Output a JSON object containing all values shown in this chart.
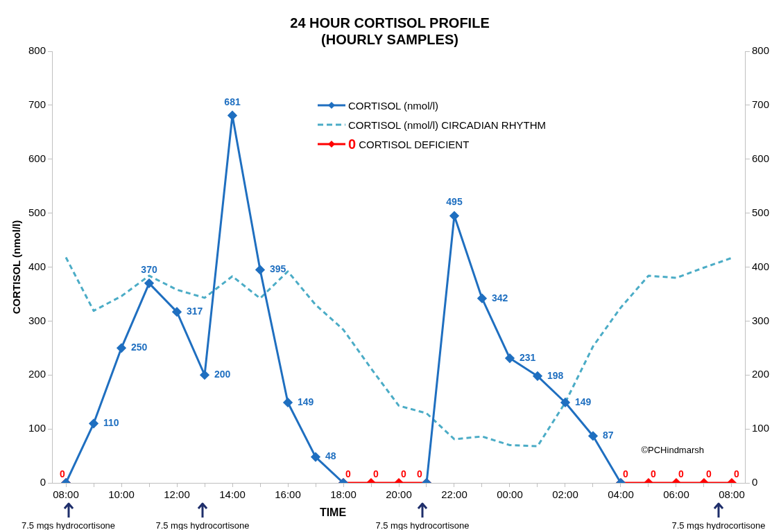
{
  "chart_data": {
    "type": "line",
    "title": "24 HOUR CORTISOL PROFILE",
    "subtitle": "(HOURLY SAMPLES)",
    "xlabel": "TIME",
    "ylabel": "CORTISOL (nmol/l)",
    "categories": [
      "08:00",
      null,
      "10:00",
      null,
      "12:00",
      null,
      "14:00",
      null,
      "16:00",
      null,
      "18:00",
      null,
      "20:00",
      null,
      "22:00",
      null,
      "00:00",
      null,
      "02:00",
      null,
      "04:00",
      null,
      "06:00",
      null,
      "08:00"
    ],
    "ylim": [
      0,
      800
    ],
    "yticks": [
      0,
      100,
      200,
      300,
      400,
      500,
      600,
      700,
      800
    ],
    "y2lim": [
      0,
      800
    ],
    "y2ticks": [
      0,
      100,
      200,
      300,
      400,
      500,
      600,
      700,
      800
    ],
    "grid": false,
    "legend": "top",
    "series": [
      {
        "name": "CORTISOL (nmol/l)",
        "color": "#1f6fc0",
        "marker": "diamond",
        "line_style": "solid",
        "values": [
          0,
          110,
          250,
          370,
          317,
          200,
          681,
          395,
          149,
          48,
          0,
          null,
          null,
          0,
          495,
          342,
          231,
          198,
          149,
          87,
          0,
          null,
          null,
          null,
          null
        ],
        "value_labels": [
          null,
          "110",
          "250",
          "370",
          "317",
          "200",
          "681",
          "395",
          "149",
          "48",
          null,
          null,
          null,
          null,
          "495",
          "342",
          "231",
          "198",
          "149",
          "87",
          null,
          null,
          null,
          null,
          null
        ]
      },
      {
        "name": "CORTISOL (nmol/l) CIRCADIAN RHYTHM",
        "color": "#4bacc6",
        "marker": "none",
        "line_style": "dashed",
        "values": [
          418,
          319,
          346,
          384,
          358,
          343,
          383,
          342,
          392,
          330,
          284,
          212,
          143,
          129,
          81,
          86,
          70,
          68,
          149,
          253,
          325,
          384,
          380,
          399,
          417
        ]
      },
      {
        "name": "CORTISOL DEFICIENT",
        "color": "#ff0000",
        "marker": "diamond",
        "line_style": "solid",
        "values": [
          0,
          null,
          null,
          null,
          null,
          null,
          null,
          null,
          null,
          null,
          0,
          0,
          0,
          0,
          null,
          null,
          null,
          null,
          null,
          null,
          0,
          0,
          0,
          0,
          0
        ],
        "value_labels": [
          "0",
          null,
          null,
          null,
          null,
          null,
          null,
          null,
          null,
          null,
          "0",
          "0",
          "0",
          "0",
          null,
          null,
          null,
          null,
          null,
          null,
          "0",
          "0",
          "0",
          "0",
          "0"
        ]
      }
    ],
    "annotations": [
      "7.5 mgs hydrocortisone",
      "7.5 mgs hydrocortisone",
      "7.5 mgs hydrocortisone",
      "7.5 mgs hydrocortisone",
      "©PCHindmarsh"
    ]
  }
}
